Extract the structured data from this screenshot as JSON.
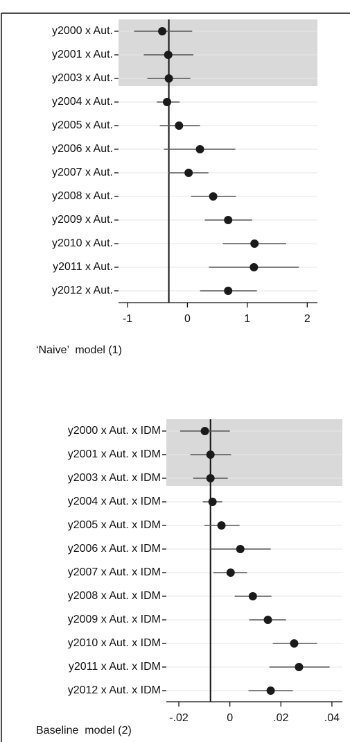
{
  "chart_data": [
    {
      "type": "coefplot",
      "caption": "‘Naive’  model (1)",
      "categories": [
        "y2000 x Aut.",
        "y2001 x Aut.",
        "y2003 x Aut.",
        "y2004 x Aut.",
        "y2005 x Aut.",
        "y2006 x Aut.",
        "y2007 x Aut.",
        "y2008 x Aut.",
        "y2009 x Aut.",
        "y2010 x Aut.",
        "y2011 x Aut.",
        "y2012 x Aut."
      ],
      "values": [
        -0.42,
        -0.32,
        -0.31,
        -0.34,
        -0.14,
        0.21,
        0.02,
        0.43,
        0.68,
        1.12,
        1.11,
        0.68
      ],
      "lower": [
        -0.89,
        -0.73,
        -0.67,
        -0.51,
        -0.46,
        -0.39,
        -0.32,
        0.06,
        0.29,
        0.59,
        0.36,
        0.21
      ],
      "upper": [
        0.08,
        0.1,
        0.05,
        -0.13,
        0.21,
        0.8,
        0.35,
        0.81,
        1.08,
        1.65,
        1.86,
        1.16
      ],
      "color": "#1a1a1a",
      "reference_line": -0.31,
      "shaded_rows": 3,
      "xlim": [
        -1.15,
        2.17
      ],
      "xticks": [
        -1,
        0,
        1,
        2
      ],
      "grid": true
    },
    {
      "type": "coefplot",
      "caption": "Baseline  model (2)",
      "categories": [
        "y2000 x Aut. x IDM",
        "y2001 x Aut. x IDM",
        "y2003 x Aut. x IDM",
        "y2004 x Aut. x IDM",
        "y2005 x Aut. x IDM",
        "y2006 x Aut. x IDM",
        "y2007 x Aut. x IDM",
        "y2008 x Aut. x IDM",
        "y2009 x Aut. x IDM",
        "y2010 x Aut. x IDM",
        "y2011 x Aut. x IDM",
        "y2012 x Aut. x IDM"
      ],
      "values": [
        -0.0098,
        -0.0076,
        -0.0076,
        -0.0068,
        -0.0033,
        0.0041,
        0.0003,
        0.009,
        0.0149,
        0.0252,
        0.0271,
        0.016
      ],
      "lower": [
        -0.0195,
        -0.0155,
        -0.0144,
        -0.0106,
        -0.01,
        -0.0076,
        -0.0065,
        0.0019,
        0.0076,
        0.0168,
        0.0155,
        0.0073
      ],
      "upper": [
        0.0,
        0.0005,
        -0.0008,
        -0.003,
        0.0038,
        0.016,
        0.0068,
        0.0163,
        0.022,
        0.0342,
        0.0391,
        0.0247
      ],
      "color": "#1a1a1a",
      "reference_line": -0.0076,
      "shaded_rows": 3,
      "xlim": [
        -0.0249,
        0.0441
      ],
      "xticks": [
        {
          "value": -0.02,
          "label": "-.02"
        },
        0,
        {
          "value": 0.02,
          "label": ".02"
        },
        {
          "value": 0.04,
          "label": ".04"
        }
      ],
      "grid": true
    }
  ]
}
